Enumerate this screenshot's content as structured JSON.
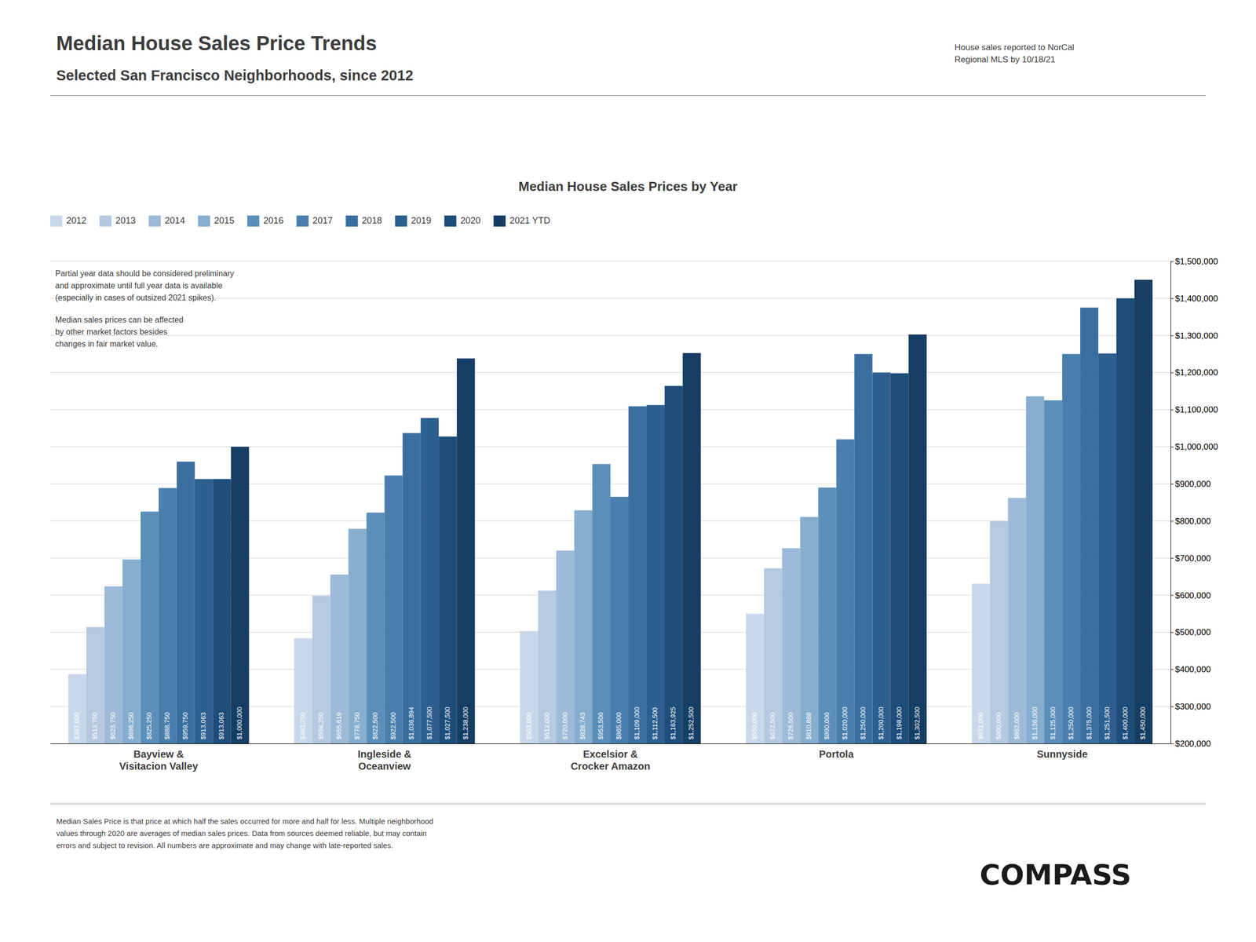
{
  "chart_data": {
    "type": "bar",
    "title": "Median House Sales Price Trends",
    "subtitle": "Selected San Francisco Neighborhoods, since 2012",
    "chart_title": "Median House Sales Prices by Year",
    "note": "House sales reported to NorCal\nRegional MLS by 10/18/21",
    "annotations": [
      "Partial year data should be considered preliminary\nand approximate until full year data is available\n(especially in cases of outsized 2021 spikes).",
      "Median sales prices can be affected\nby other market factors besides\nchanges in fair market value."
    ],
    "footer": "Median Sales Price is that price at which half the sales occurred for more and half for less. Multiple neighborhood\nvalues through 2020 are averages of median sales prices. Data from sources deemed reliable, but may contain\nerrors and subject to revision.  All numbers are approximate and may change with late-reported sales.",
    "logo": "COMPASS",
    "categories": [
      "Bayview &\nVisitacion Valley",
      "Ingleside &\nOceanview",
      "Excelsior &\nCrocker Amazon",
      "Portola",
      "Sunnyside"
    ],
    "series": [
      {
        "name": "2012",
        "color": "#c8d8ea",
        "values": [
          387000,
          483750,
          503000,
          550000,
          631000
        ],
        "value_labels": [
          "$387,000",
          "$483,750",
          "$503,000",
          "$550,000",
          "$631,000"
        ]
      },
      {
        "name": "2013",
        "color": "#b5c9e0",
        "values": [
          513750,
          598250,
          612000,
          672500,
          800000
        ],
        "value_labels": [
          "$513,750",
          "$598,250",
          "$612,000",
          "$672,500",
          "$800,000"
        ]
      },
      {
        "name": "2014",
        "color": "#9dbad8",
        "values": [
          623750,
          655619,
          720000,
          726500,
          862000
        ],
        "value_labels": [
          "$623,750",
          "$655,619",
          "$720,000",
          "$726,500",
          "$862,000"
        ]
      },
      {
        "name": "2015",
        "color": "#87aece",
        "values": [
          696250,
          778750,
          828743,
          810888,
          1136000
        ],
        "value_labels": [
          "$696,250",
          "$778,750",
          "$828,743",
          "$810,888",
          "$1,136,000"
        ]
      },
      {
        "name": "2016",
        "color": "#5b8fba",
        "values": [
          825250,
          822500,
          953500,
          890000,
          1125000
        ],
        "value_labels": [
          "$825,250",
          "$822,500",
          "$953,500",
          "$890,000",
          "$1,125,000"
        ]
      },
      {
        "name": "2017",
        "color": "#4a7fad",
        "values": [
          888750,
          922500,
          865000,
          1020000,
          1250000
        ],
        "value_labels": [
          "$888,750",
          "$922,500",
          "$865,000",
          "$1,020,000",
          "$1,250,000"
        ]
      },
      {
        "name": "2018",
        "color": "#3a6fa0",
        "values": [
          959750,
          1036894,
          1109000,
          1250000,
          1375000
        ],
        "value_labels": [
          "$959,750",
          "$1,036,894",
          "$1,109,000",
          "$1,250,000",
          "$1,375,000"
        ]
      },
      {
        "name": "2019",
        "color": "#2d5f8f",
        "values": [
          913063,
          1077500,
          1112500,
          1200000,
          1251500
        ],
        "value_labels": [
          "$913,063",
          "$1,077,500",
          "$1,112,500",
          "$1,200,000",
          "$1,251,500"
        ]
      },
      {
        "name": "2020",
        "color": "#1e4d7a",
        "values": [
          913063,
          1027500,
          1163925,
          1198000,
          1400000
        ],
        "value_labels": [
          "$913,063",
          "$1,027,500",
          "$1,163,925",
          "$1,198,000",
          "$1,400,000"
        ]
      },
      {
        "name": "2021 YTD",
        "color": "#163d63",
        "values": [
          1000000,
          1238000,
          1252500,
          1302500,
          1450000
        ],
        "value_labels": [
          "$1,000,000",
          "$1,238,000",
          "$1,252,500",
          "$1,302,500",
          "$1,450,000"
        ]
      }
    ],
    "ylim": [
      200000,
      1500000
    ],
    "yticks": [
      {
        "value": 200000,
        "label": "$200,000"
      },
      {
        "value": 300000,
        "label": "$300,000"
      },
      {
        "value": 400000,
        "label": "$400,000"
      },
      {
        "value": 500000,
        "label": "$500,000"
      },
      {
        "value": 600000,
        "label": "$600,000"
      },
      {
        "value": 700000,
        "label": "$700,000"
      },
      {
        "value": 800000,
        "label": "$800,000"
      },
      {
        "value": 900000,
        "label": "$900,000"
      },
      {
        "value": 1000000,
        "label": "$1,000,000"
      },
      {
        "value": 1100000,
        "label": "$1,100,000"
      },
      {
        "value": 1200000,
        "label": "$1,200,000"
      },
      {
        "value": 1300000,
        "label": "$1,300,000"
      },
      {
        "value": 1400000,
        "label": "$1,400,000"
      },
      {
        "value": 1500000,
        "label": "$1,500,000"
      }
    ],
    "grid": true,
    "legend": "top-left",
    "data_labels": true
  }
}
